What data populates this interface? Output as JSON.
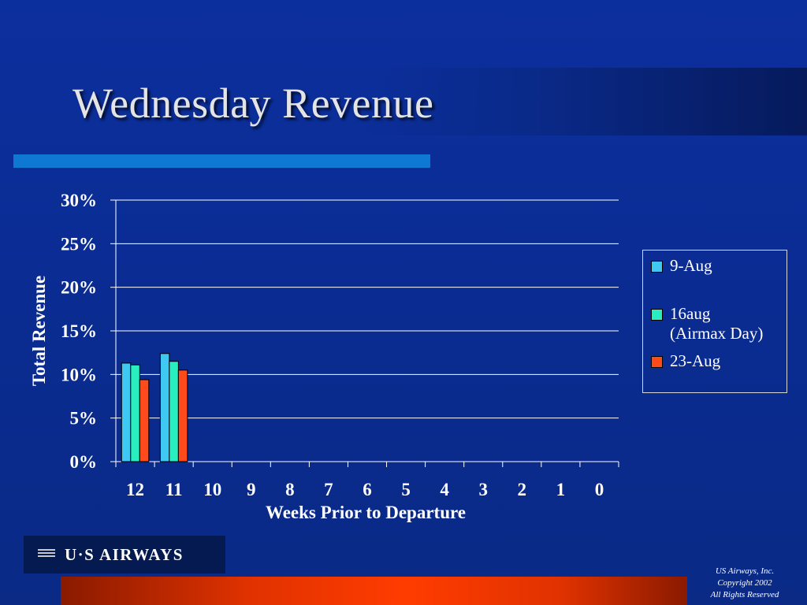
{
  "slide": {
    "title": "Wednesday Revenue",
    "logo_text": "U·S AIRWAYS",
    "copyright": [
      "US Airways, Inc.",
      "Copyright 2002",
      "All Rights Reserved"
    ]
  },
  "chart_data": {
    "type": "bar",
    "xlabel": "Weeks Prior to Departure",
    "ylabel": "Total Revenue",
    "categories": [
      "12",
      "11",
      "10",
      "9",
      "8",
      "7",
      "6",
      "5",
      "4",
      "3",
      "2",
      "1",
      "0"
    ],
    "ylim": [
      0,
      30
    ],
    "yticks": [
      0,
      5,
      10,
      15,
      20,
      25,
      30
    ],
    "ytick_labels": [
      "0%",
      "5%",
      "10%",
      "15%",
      "20%",
      "25%",
      "30%"
    ],
    "grid": true,
    "legend_position": "right",
    "series": [
      {
        "name": "9-Aug",
        "color": "#3ec8f2",
        "values": [
          11.3,
          12.4,
          null,
          null,
          null,
          null,
          null,
          null,
          null,
          null,
          null,
          null,
          null
        ]
      },
      {
        "name": "16aug (Airmax Day)",
        "name_lines": [
          "16aug",
          "(Airmax Day)"
        ],
        "color": "#29eec0",
        "values": [
          11.1,
          11.5,
          null,
          null,
          null,
          null,
          null,
          null,
          null,
          null,
          null,
          null,
          null
        ]
      },
      {
        "name": "23-Aug",
        "color": "#ff4a1c",
        "values": [
          9.4,
          10.5,
          null,
          null,
          null,
          null,
          null,
          null,
          null,
          null,
          null,
          null,
          null
        ]
      }
    ]
  }
}
